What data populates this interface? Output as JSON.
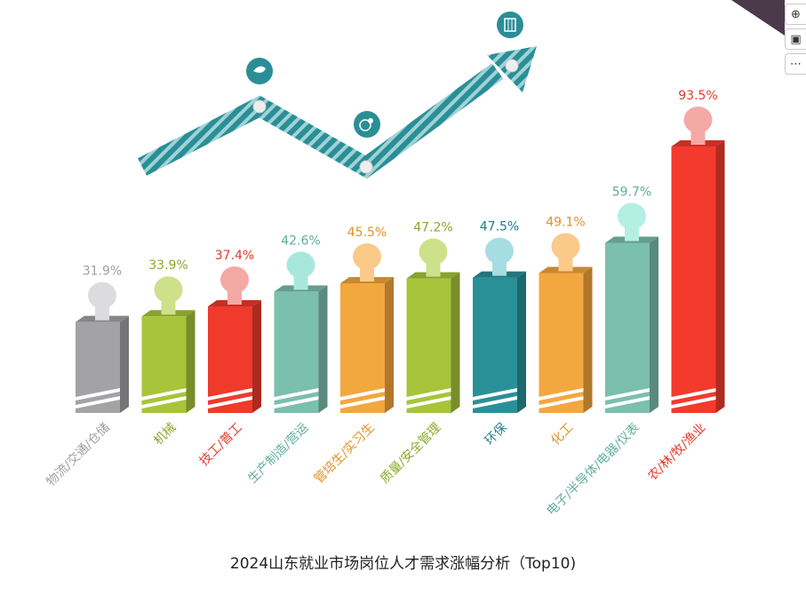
{
  "chart_data": {
    "type": "bar",
    "title": "2024山东就业市场岗位人才需求涨幅分析（Top10)",
    "categories": [
      "物流/交通/仓储",
      "机械",
      "技工/普工",
      "生产制造/营运",
      "管培生/实习生",
      "质量/安全管理",
      "环保",
      "化工",
      "电子/半导体/电器/仪表",
      "农/林/牧/渔业"
    ],
    "values": [
      31.9,
      33.9,
      37.4,
      42.6,
      45.5,
      47.2,
      47.5,
      49.1,
      59.7,
      93.5
    ],
    "value_labels": [
      "31.9%",
      "33.9%",
      "37.4%",
      "42.6%",
      "45.5%",
      "47.2%",
      "47.5%",
      "49.1%",
      "59.7%",
      "93.5%"
    ],
    "colors": [
      "#a3a3a5",
      "#a8c43a",
      "#ef3a2c",
      "#7bbfae",
      "#f3a73f",
      "#a8c43a",
      "#2a9098",
      "#f3a73f",
      "#7bbfae",
      "#f43a2c"
    ],
    "label_colors": [
      "#a0a0a0",
      "#8aa82a",
      "#e23b2e",
      "#5fae9c",
      "#e0922a",
      "#8aa82a",
      "#1f7f86",
      "#e0922a",
      "#5fae9c",
      "#e23b2e"
    ],
    "knob_colors": [
      "#dcdcde",
      "#cfe08a",
      "#f4a9a6",
      "#a8e8dc",
      "#fbc98a",
      "#cfe08a",
      "#a6dde3",
      "#fbc98a",
      "#b3efe3",
      "#f4a9a6"
    ],
    "ylim": [
      0,
      100
    ],
    "xlabel": "",
    "ylabel": ""
  },
  "icons": [
    "bird-icon",
    "globe-pin-icon",
    "building-icon"
  ],
  "toolbar_icons": [
    "zoom-in-icon",
    "image-search-icon",
    "more-icon"
  ]
}
